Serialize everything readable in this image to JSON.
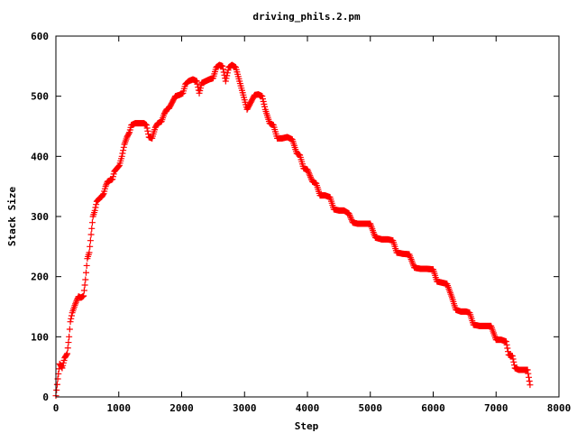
{
  "chart_data": {
    "type": "scatter",
    "title": "driving_phils.2.pm",
    "xlabel": "Step",
    "ylabel": "Stack Size",
    "xlim": [
      0,
      8000
    ],
    "ylim": [
      0,
      600
    ],
    "x_ticks": [
      "0",
      "1000",
      "2000",
      "3000",
      "4000",
      "5000",
      "6000",
      "7000",
      "8000"
    ],
    "y_ticks": [
      "0",
      "100",
      "200",
      "300",
      "400",
      "500",
      "600"
    ],
    "grid": false,
    "legend": "none",
    "marker": "plus",
    "color": "#ff0000",
    "series": [
      {
        "path": [
          [
            0,
            2
          ],
          [
            30,
            30
          ],
          [
            60,
            55
          ],
          [
            100,
            48
          ],
          [
            140,
            65
          ],
          [
            180,
            72
          ],
          [
            210,
            100
          ],
          [
            230,
            125
          ],
          [
            260,
            140
          ],
          [
            300,
            152
          ],
          [
            330,
            160
          ],
          [
            360,
            167
          ],
          [
            400,
            165
          ],
          [
            440,
            168
          ],
          [
            470,
            195
          ],
          [
            500,
            230
          ],
          [
            530,
            240
          ],
          [
            560,
            270
          ],
          [
            590,
            300
          ],
          [
            620,
            310
          ],
          [
            650,
            325
          ],
          [
            690,
            330
          ],
          [
            730,
            333
          ],
          [
            760,
            338
          ],
          [
            790,
            350
          ],
          [
            820,
            358
          ],
          [
            860,
            360
          ],
          [
            900,
            362
          ],
          [
            930,
            375
          ],
          [
            970,
            380
          ],
          [
            1010,
            385
          ],
          [
            1050,
            400
          ],
          [
            1090,
            420
          ],
          [
            1130,
            432
          ],
          [
            1170,
            440
          ],
          [
            1200,
            452
          ],
          [
            1260,
            455
          ],
          [
            1320,
            455
          ],
          [
            1400,
            455
          ],
          [
            1440,
            452
          ],
          [
            1480,
            432
          ],
          [
            1530,
            430
          ],
          [
            1580,
            448
          ],
          [
            1620,
            455
          ],
          [
            1680,
            458
          ],
          [
            1720,
            470
          ],
          [
            1760,
            478
          ],
          [
            1800,
            480
          ],
          [
            1850,
            490
          ],
          [
            1900,
            500
          ],
          [
            1960,
            502
          ],
          [
            2020,
            505
          ],
          [
            2060,
            520
          ],
          [
            2110,
            525
          ],
          [
            2180,
            528
          ],
          [
            2240,
            525
          ],
          [
            2280,
            505
          ],
          [
            2320,
            522
          ],
          [
            2380,
            525
          ],
          [
            2440,
            528
          ],
          [
            2500,
            530
          ],
          [
            2550,
            548
          ],
          [
            2600,
            552
          ],
          [
            2650,
            550
          ],
          [
            2700,
            525
          ],
          [
            2750,
            548
          ],
          [
            2800,
            552
          ],
          [
            2860,
            548
          ],
          [
            2920,
            525
          ],
          [
            2980,
            502
          ],
          [
            3040,
            478
          ],
          [
            3100,
            490
          ],
          [
            3160,
            502
          ],
          [
            3220,
            503
          ],
          [
            3280,
            500
          ],
          [
            3330,
            478
          ],
          [
            3400,
            455
          ],
          [
            3460,
            452
          ],
          [
            3520,
            430
          ],
          [
            3600,
            430
          ],
          [
            3680,
            432
          ],
          [
            3760,
            428
          ],
          [
            3830,
            405
          ],
          [
            3880,
            402
          ],
          [
            3940,
            380
          ],
          [
            4000,
            378
          ],
          [
            4080,
            358
          ],
          [
            4140,
            355
          ],
          [
            4200,
            335
          ],
          [
            4280,
            335
          ],
          [
            4360,
            332
          ],
          [
            4420,
            312
          ],
          [
            4500,
            310
          ],
          [
            4580,
            310
          ],
          [
            4660,
            305
          ],
          [
            4720,
            290
          ],
          [
            4800,
            288
          ],
          [
            4900,
            288
          ],
          [
            5000,
            288
          ],
          [
            5080,
            265
          ],
          [
            5180,
            262
          ],
          [
            5280,
            262
          ],
          [
            5360,
            260
          ],
          [
            5420,
            240
          ],
          [
            5520,
            238
          ],
          [
            5620,
            237
          ],
          [
            5700,
            215
          ],
          [
            5800,
            213
          ],
          [
            5900,
            213
          ],
          [
            6000,
            212
          ],
          [
            6060,
            192
          ],
          [
            6140,
            190
          ],
          [
            6220,
            188
          ],
          [
            6300,
            165
          ],
          [
            6360,
            145
          ],
          [
            6440,
            142
          ],
          [
            6520,
            142
          ],
          [
            6580,
            140
          ],
          [
            6640,
            120
          ],
          [
            6740,
            118
          ],
          [
            6840,
            118
          ],
          [
            6920,
            118
          ],
          [
            7000,
            95
          ],
          [
            7080,
            95
          ],
          [
            7160,
            92
          ],
          [
            7200,
            70
          ],
          [
            7260,
            68
          ],
          [
            7300,
            48
          ],
          [
            7360,
            45
          ],
          [
            7440,
            45
          ],
          [
            7500,
            45
          ],
          [
            7540,
            20
          ]
        ]
      }
    ]
  }
}
